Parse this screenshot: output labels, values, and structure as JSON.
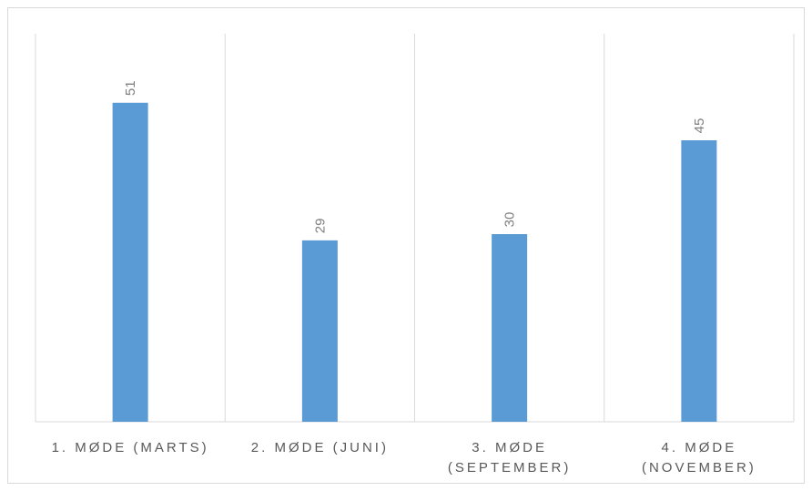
{
  "chart_data": {
    "type": "bar",
    "title": "",
    "xlabel": "",
    "ylabel": "",
    "categories": [
      [
        "1. MØDE (MARTS)"
      ],
      [
        "2. MØDE (JUNI)"
      ],
      [
        "3. MØDE",
        "(SEPTEMBER)"
      ],
      [
        "4. MØDE",
        "(NOVEMBER)"
      ]
    ],
    "values": [
      51,
      29,
      30,
      45
    ],
    "ylim": [
      0,
      60
    ],
    "grid": "vertical-category-separators",
    "legend": "none",
    "data_labels": true,
    "bar_color": "#5b9bd5"
  }
}
